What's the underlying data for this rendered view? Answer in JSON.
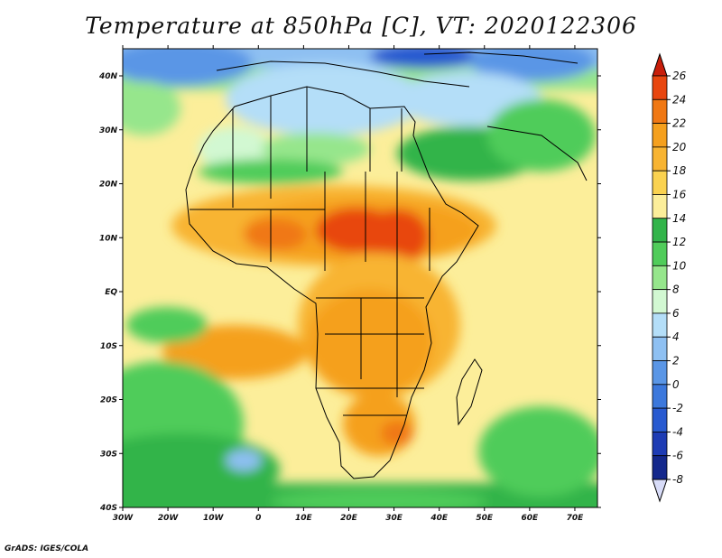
{
  "title": "Temperature at 850hPa [C], VT: 2020122306",
  "credit": "GrADS: IGES/COLA",
  "map": {
    "region": "Africa",
    "lon_range": [
      -30,
      75
    ],
    "lat_range": [
      -40,
      45
    ],
    "lon_ticks": [
      "30W",
      "20W",
      "10W",
      "0",
      "10E",
      "20E",
      "30E",
      "40E",
      "50E",
      "60E",
      "70E"
    ],
    "lat_ticks": [
      "40N",
      "30N",
      "20N",
      "10N",
      "EQ",
      "10S",
      "20S",
      "30S",
      "40S"
    ]
  },
  "colorbar": {
    "levels": [
      "26",
      "24",
      "22",
      "20",
      "18",
      "16",
      "14",
      "12",
      "10",
      "8",
      "6",
      "4",
      "2",
      "0",
      "-2",
      "-4",
      "-6",
      "-8"
    ],
    "colors": {
      "above_26": "#c81e0a",
      "24_26": "#e8460f",
      "22_24": "#f07814",
      "20_22": "#f5a01e",
      "18_20": "#f8b432",
      "16_18": "#fad250",
      "14_16": "#fcee9a",
      "12_14": "#32b44a",
      "10_12": "#50cc5a",
      "8_10": "#96e68c",
      "6_8": "#d2f8d2",
      "4_6": "#b4def8",
      "2_4": "#8ec0f2",
      "0_2": "#5a96e6",
      "m2_0": "#3c78dc",
      "m4_m2": "#285ad0",
      "m6_m4": "#1e3cb4",
      "m8_m6": "#14288c",
      "below_m8": "#d8dcf8"
    }
  }
}
